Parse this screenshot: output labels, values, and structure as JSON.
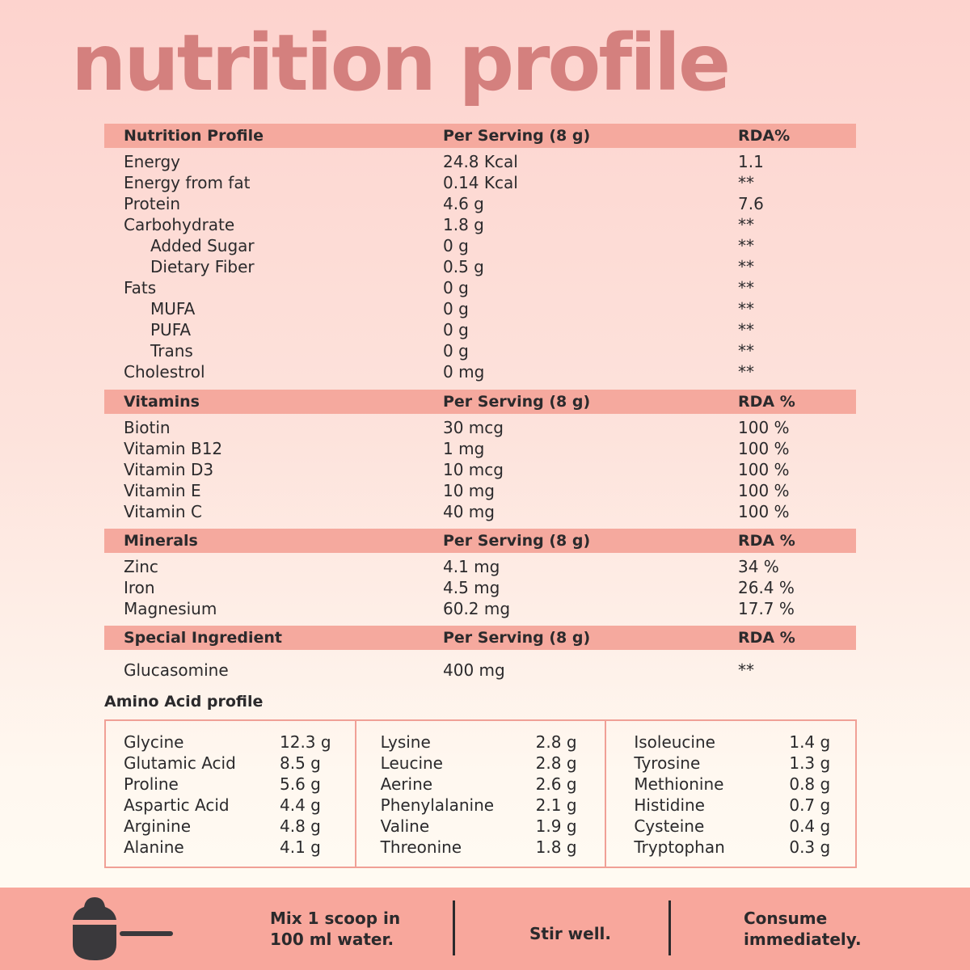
{
  "title": "nutrition profile",
  "colors": {
    "title": "#d4807e",
    "header_band": "#f5a99e",
    "footer": "#f8a79c",
    "text": "#2b2a2c"
  },
  "sections": [
    {
      "header": [
        "Nutrition Profile",
        "Per Serving (8 g)",
        "RDA%"
      ],
      "rows": [
        [
          "Energy",
          "24.8 Kcal",
          "1.1",
          0
        ],
        [
          "Energy from fat",
          "0.14 Kcal",
          "**",
          0
        ],
        [
          "Protein",
          "4.6 g",
          "7.6",
          0
        ],
        [
          "Carbohydrate",
          "1.8 g",
          "**",
          0
        ],
        [
          "Added Sugar",
          "0 g",
          "**",
          1
        ],
        [
          "Dietary Fiber",
          "0.5 g",
          "**",
          1
        ],
        [
          "Fats",
          "0 g",
          "**",
          0
        ],
        [
          "MUFA",
          "0 g",
          "**",
          1
        ],
        [
          "PUFA",
          "0 g",
          "**",
          1
        ],
        [
          "Trans",
          "0 g",
          "**",
          1
        ],
        [
          "Cholestrol",
          "0 mg",
          "**",
          0
        ]
      ]
    },
    {
      "header": [
        "Vitamins",
        "Per Serving (8 g)",
        "RDA %"
      ],
      "rows": [
        [
          "Biotin",
          "30 mcg",
          "100 %",
          0
        ],
        [
          "Vitamin B12",
          "1 mg",
          "100 %",
          0
        ],
        [
          "Vitamin D3",
          "10 mcg",
          "100 %",
          0
        ],
        [
          "Vitamin E",
          "10 mg",
          "100 %",
          0
        ],
        [
          "Vitamin C",
          "40 mg",
          "100 %",
          0
        ]
      ]
    },
    {
      "header": [
        "Minerals",
        "Per Serving (8 g)",
        "RDA %"
      ],
      "rows": [
        [
          "Zinc",
          "4.1 mg",
          "34 %",
          0
        ],
        [
          "Iron",
          "4.5 mg",
          "26.4 %",
          0
        ],
        [
          "Magnesium",
          "60.2 mg",
          "17.7 %",
          0
        ]
      ]
    },
    {
      "header": [
        "Special Ingredient",
        "Per Serving (8 g)",
        "RDA %"
      ],
      "rows": [
        [
          "Glucasomine",
          "400 mg",
          "**",
          0
        ]
      ]
    }
  ],
  "amino": {
    "title": "Amino Acid profile",
    "columns": [
      [
        [
          "Glycine",
          "12.3 g"
        ],
        [
          "Glutamic Acid",
          "8.5 g"
        ],
        [
          "Proline",
          "5.6 g"
        ],
        [
          "Aspartic Acid",
          "4.4 g"
        ],
        [
          "Arginine",
          "4.8 g"
        ],
        [
          "Alanine",
          "4.1 g"
        ]
      ],
      [
        [
          "Lysine",
          "2.8 g"
        ],
        [
          "Leucine",
          "2.8 g"
        ],
        [
          "Aerine",
          "2.6 g"
        ],
        [
          "Phenylalanine",
          "2.1 g"
        ],
        [
          "Valine",
          "1.9 g"
        ],
        [
          "Threonine",
          "1.8 g"
        ]
      ],
      [
        [
          "Isoleucine",
          "1.4 g"
        ],
        [
          "Tyrosine",
          "1.3 g"
        ],
        [
          "Methionine",
          "0.8 g"
        ],
        [
          "Histidine",
          "0.7 g"
        ],
        [
          "Cysteine",
          "0.4 g"
        ],
        [
          "Tryptophan",
          "0.3 g"
        ]
      ]
    ]
  },
  "footer": {
    "icon": "scoop-icon",
    "step1_line1": "Mix 1 scoop in",
    "step1_line2": "100 ml water.",
    "step2": "Stir well.",
    "step3_line1": "Consume",
    "step3_line2": "immediately."
  }
}
